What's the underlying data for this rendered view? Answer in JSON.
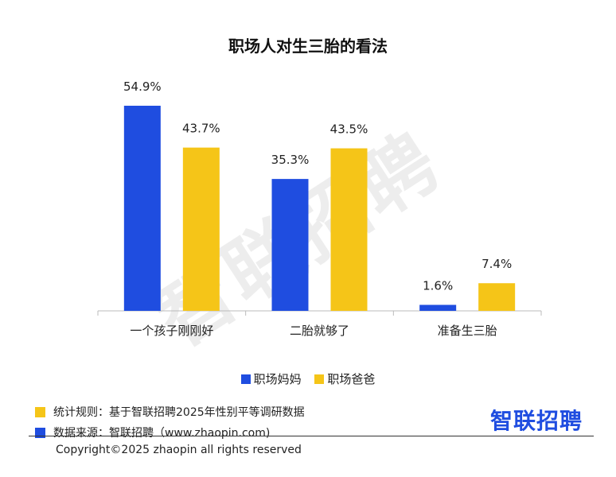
{
  "title": "职场人对生三胎的看法",
  "watermark": "智联招聘",
  "colors": {
    "mothers": "#1f4de0",
    "fathers": "#f5c518",
    "axis": "#bbbbbb"
  },
  "chart_data": {
    "type": "bar",
    "title": "职场人对生三胎的看法",
    "categories": [
      "一个孩子刚刚好",
      "二胎就够了",
      "准备生三胎"
    ],
    "series": [
      {
        "name": "职场妈妈",
        "values": [
          54.9,
          35.3,
          1.6
        ],
        "labels": [
          "54.9%",
          "35.3%",
          "1.6%"
        ]
      },
      {
        "name": "职场爸爸",
        "values": [
          43.7,
          43.5,
          7.4
        ],
        "labels": [
          "43.7%",
          "43.5%",
          "7.4%"
        ]
      }
    ],
    "ylim": [
      0,
      60
    ],
    "grid": false,
    "legend_position": "bottom"
  },
  "legend": {
    "mothers": "职场妈妈",
    "fathers": "职场爸爸"
  },
  "notes": {
    "rule": "统计规则：基于智联招聘2025年性别平等调研数据",
    "source": "数据来源：智联招聘（www.zhaopin.com)"
  },
  "brand": "智联招聘",
  "copyright": "Copyright©2025 zhaopin all rights reserved"
}
